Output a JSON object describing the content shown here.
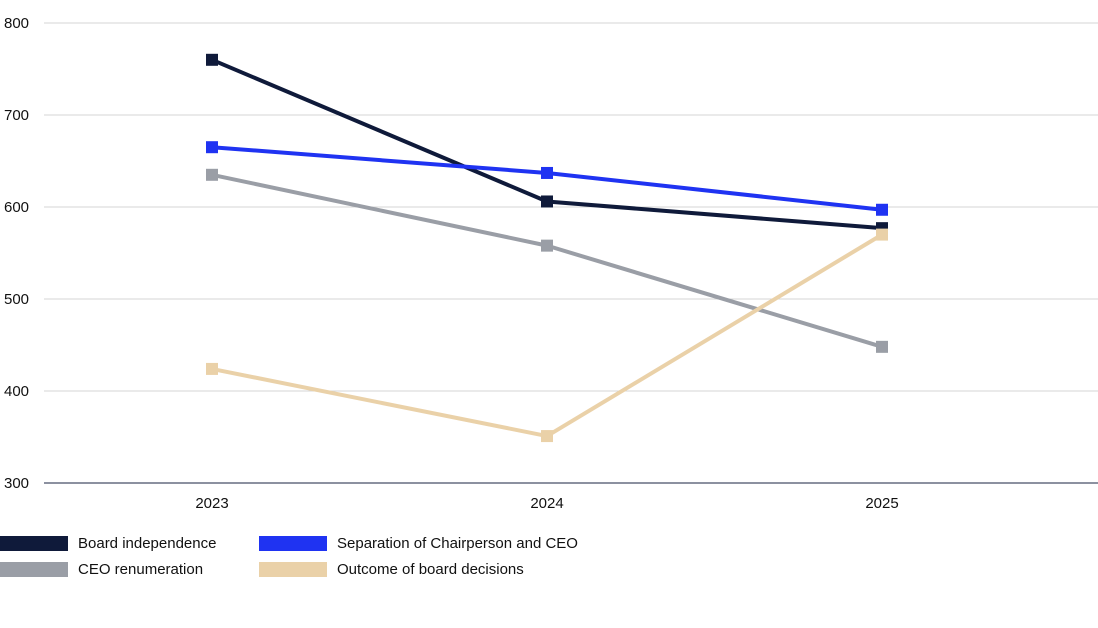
{
  "chart_data": {
    "type": "line",
    "title": "",
    "xlabel": "",
    "ylabel": "",
    "categories": [
      "2023",
      "2024",
      "2025"
    ],
    "ylim": [
      300,
      800
    ],
    "yticks": [
      300,
      400,
      500,
      600,
      700,
      800
    ],
    "grid": true,
    "legend_position": "bottom-left",
    "series": [
      {
        "name": "Board independence",
        "color": "#0f1a3a",
        "values": [
          760,
          606,
          577
        ]
      },
      {
        "name": "Separation of Chairperson and CEO",
        "color": "#1f33f2",
        "values": [
          665,
          637,
          597
        ]
      },
      {
        "name": "CEO renumeration",
        "color": "#9a9ea6",
        "values": [
          635,
          558,
          448
        ]
      },
      {
        "name": "Outcome of board decisions",
        "color": "#ead1a8",
        "values": [
          424,
          351,
          570
        ]
      }
    ]
  }
}
